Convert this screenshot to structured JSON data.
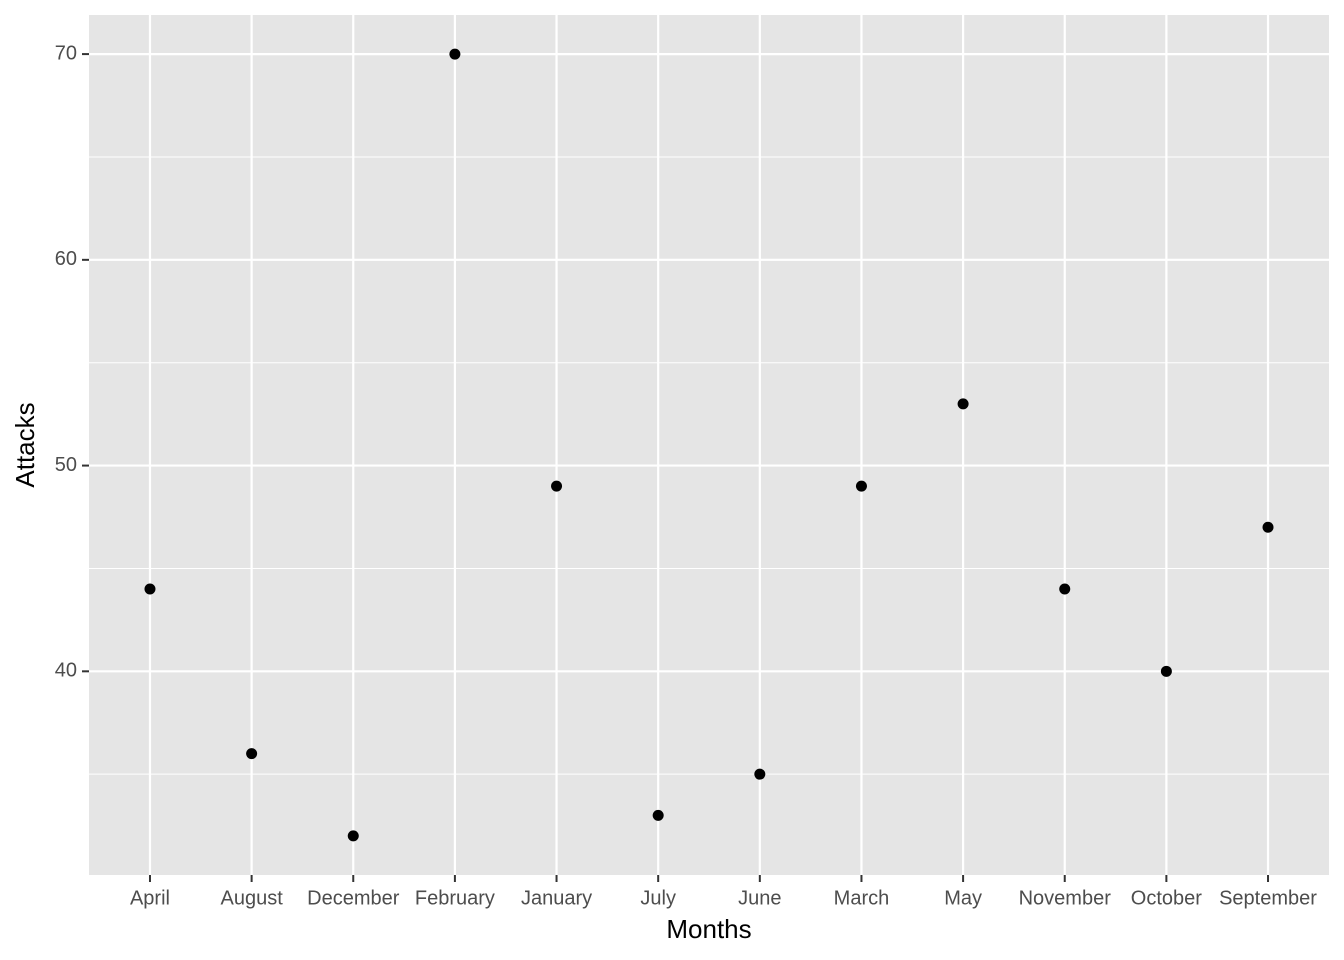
{
  "chart_data": {
    "type": "scatter",
    "x_label": "Months",
    "y_label": "Attacks",
    "categories": [
      "April",
      "August",
      "December",
      "February",
      "January",
      "July",
      "June",
      "March",
      "May",
      "November",
      "October",
      "September"
    ],
    "values": [
      44,
      36,
      32,
      70,
      49,
      33,
      35,
      49,
      53,
      44,
      40,
      47
    ],
    "color": "#000000",
    "panel_color": "#e5e5e5",
    "ylim": [
      30.1,
      71.9
    ],
    "yticks": [
      40,
      50,
      60,
      70
    ],
    "minor_yticks": [
      35,
      45,
      55,
      65
    ],
    "grid": true
  }
}
